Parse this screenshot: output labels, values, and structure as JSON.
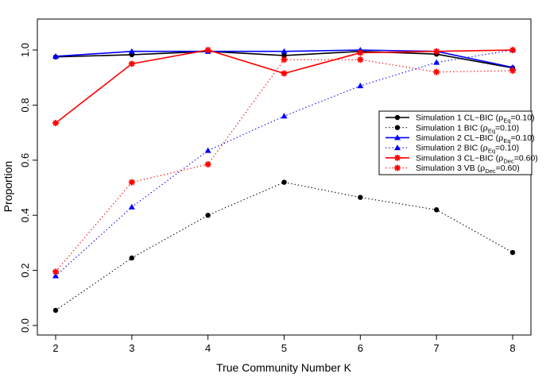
{
  "chart_data": {
    "type": "line",
    "title": "",
    "xlabel": "True Community Number K",
    "ylabel": "Proportion",
    "x": [
      2,
      3,
      4,
      5,
      6,
      7,
      8
    ],
    "xticks": [
      "2",
      "3",
      "4",
      "5",
      "6",
      "7",
      "8"
    ],
    "yticks": [
      "0.0",
      "0.2",
      "0.4",
      "0.6",
      "0.8",
      "1.0"
    ],
    "xlim": [
      2,
      8
    ],
    "ylim": [
      0,
      1
    ],
    "grid": false,
    "legend_position": "right",
    "series": [
      {
        "name": "Simulation 1 CL−BIC",
        "rho_sub": "Eq",
        "rho_val": "0.10",
        "color": "#000000",
        "line": "solid",
        "marker": "circle",
        "values": [
          0.975,
          0.983,
          0.995,
          0.98,
          0.995,
          0.985,
          0.935
        ]
      },
      {
        "name": "Simulation 1 BIC",
        "rho_sub": "Eq",
        "rho_val": "0.10",
        "color": "#000000",
        "line": "dotted",
        "marker": "circle",
        "values": [
          0.055,
          0.245,
          0.4,
          0.52,
          0.465,
          0.42,
          0.265
        ]
      },
      {
        "name": "Simulation 2 CL−BIC",
        "rho_sub": "Eq",
        "rho_val": "0.10",
        "color": "#0000ff",
        "line": "solid",
        "marker": "triangle",
        "values": [
          0.977,
          0.995,
          0.995,
          0.995,
          1.0,
          0.995,
          0.937
        ]
      },
      {
        "name": "Simulation 2 BIC",
        "rho_sub": "Eq",
        "rho_val": "0.10",
        "color": "#0000ff",
        "line": "dotted",
        "marker": "triangle",
        "values": [
          0.18,
          0.43,
          0.635,
          0.76,
          0.87,
          0.955,
          1.0
        ]
      },
      {
        "name": "Simulation 3 CL−BIC",
        "rho_sub": "Dec",
        "rho_val": "0.60",
        "color": "#ff0000",
        "line": "solid",
        "marker": "star",
        "values": [
          0.735,
          0.95,
          1.0,
          0.915,
          0.99,
          0.995,
          1.0
        ]
      },
      {
        "name": "Simulation 3 VB",
        "rho_sub": "Dec",
        "rho_val": "0.60",
        "color": "#ff0000",
        "line": "dotted",
        "marker": "star",
        "values": [
          0.195,
          0.52,
          0.585,
          0.965,
          0.965,
          0.92,
          0.925
        ]
      }
    ]
  }
}
